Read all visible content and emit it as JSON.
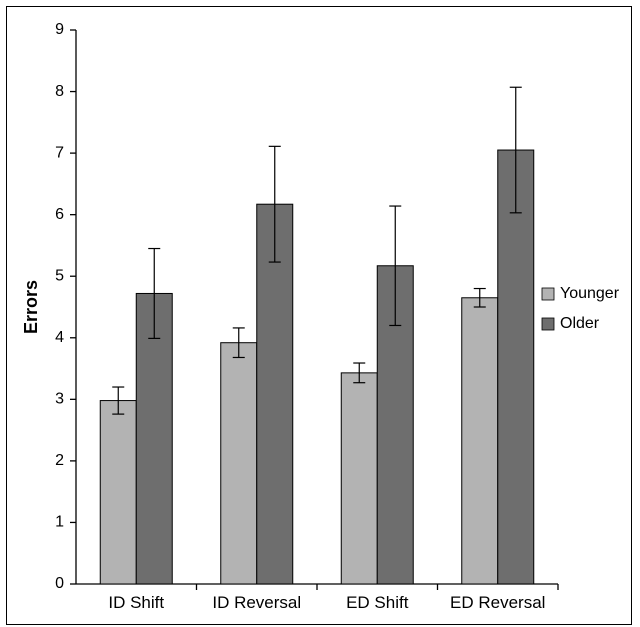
{
  "chart_data": {
    "type": "bar",
    "title": "",
    "xlabel": "",
    "ylabel": "Errors",
    "ylim": [
      0,
      9
    ],
    "yticks": [
      0,
      1,
      2,
      3,
      4,
      5,
      6,
      7,
      8,
      9
    ],
    "categories": [
      "ID Shift",
      "ID Reversal",
      "ED Shift",
      "ED Reversal"
    ],
    "series": [
      {
        "name": "Younger",
        "color": "#b3b3b3",
        "values": [
          2.98,
          3.92,
          3.43,
          4.65
        ],
        "error": [
          0.22,
          0.24,
          0.16,
          0.15
        ]
      },
      {
        "name": "Older",
        "color": "#6e6e6e",
        "values": [
          4.72,
          6.17,
          5.17,
          7.05
        ],
        "error": [
          0.73,
          0.94,
          0.97,
          1.02
        ]
      }
    ],
    "legend_position": "right",
    "grid": false
  }
}
